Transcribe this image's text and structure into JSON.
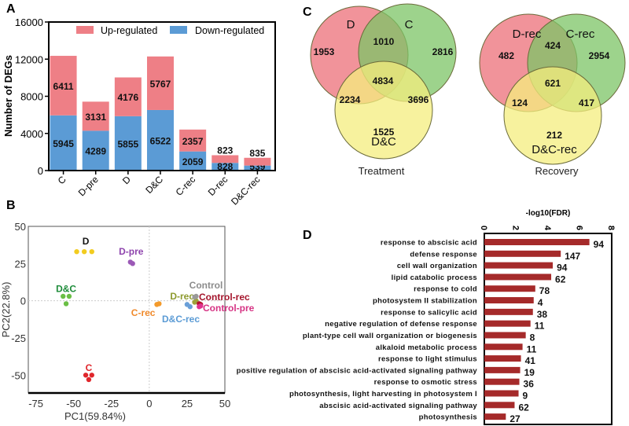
{
  "panels": {
    "a": "A",
    "b": "B",
    "c": "C",
    "d": "D"
  },
  "chart_data": [
    {
      "type": "bar",
      "stacked": true,
      "ylabel": "Number of DEGs",
      "ylim": [
        0,
        16000
      ],
      "yticks": [
        0,
        4000,
        8000,
        12000,
        16000
      ],
      "categories": [
        "C",
        "D-pre",
        "D",
        "D&C",
        "C-rec",
        "D-rec",
        "D&C-rec"
      ],
      "legend_position": "top-right",
      "series": [
        {
          "name": "Down-regulated",
          "color": "#5b9bd5",
          "values": [
            5945,
            4289,
            5855,
            6522,
            2059,
            828,
            539
          ]
        },
        {
          "name": "Up-regulated",
          "color": "#ee7f86",
          "values": [
            6411,
            3131,
            4176,
            5767,
            2357,
            823,
            835
          ]
        }
      ]
    },
    {
      "type": "scatter",
      "xlabel": "PC1(59.84%)",
      "ylabel": "PC2(22.8%)",
      "xlim": [
        -80,
        50
      ],
      "ylim": [
        -62,
        50
      ],
      "xticks": [
        -75,
        -50,
        -25,
        0,
        25,
        50
      ],
      "yticks": [
        -50,
        -25,
        0,
        25,
        50
      ],
      "groups": [
        {
          "name": "D",
          "color": "#f2cc1f",
          "label_color": "#111111",
          "points": [
            [
              -48,
              33
            ],
            [
              -43,
              33
            ],
            [
              -38,
              33
            ]
          ],
          "label_at": [
            -42,
            40
          ]
        },
        {
          "name": "D-pre",
          "color": "#9b59b6",
          "label_color": "#8e44ad",
          "points": [
            [
              -12.5,
              26
            ],
            [
              -11,
              25
            ]
          ],
          "label_at": [
            -12,
            33
          ]
        },
        {
          "name": "D&C",
          "color": "#6abf45",
          "label_color": "#1e8c3a",
          "points": [
            [
              -57,
              3
            ],
            [
              -53,
              3
            ],
            [
              -55,
              -2
            ]
          ],
          "label_at": [
            -55,
            8
          ]
        },
        {
          "name": "C",
          "color": "#e0262b",
          "label_color": "#e0262b",
          "points": [
            [
              -42,
              -50
            ],
            [
              -38,
              -50
            ],
            [
              -40,
              -53
            ]
          ],
          "label_at": [
            -40,
            -45
          ]
        },
        {
          "name": "C-rec",
          "color": "#f39a2b",
          "label_color": "#f08a2b",
          "points": [
            [
              5,
              -2.5
            ],
            [
              6.5,
              -2
            ]
          ],
          "label_at": [
            -4,
            -8
          ]
        },
        {
          "name": "D-rec",
          "color": "#9ea23a",
          "label_color": "#8d9a2e",
          "points": [
            [
              30,
              -1
            ],
            [
              31,
              0
            ]
          ],
          "label_at": [
            18,
            2
          ]
        },
        {
          "name": "Control",
          "color": "#999999",
          "label_color": "#8c8c8c",
          "points": [
            [
              30,
              2.5
            ],
            [
              31,
              3
            ]
          ],
          "label_at": [
            31,
            9
          ]
        },
        {
          "name": "Control-rec",
          "color": "#b3122b",
          "label_color": "#a4142b",
          "points": [
            [
              33,
              -2
            ],
            [
              34,
              -2.5
            ]
          ],
          "label_at": [
            46,
            2
          ]
        },
        {
          "name": "Control-pre",
          "color": "#e0338f",
          "label_color": "#d63384",
          "points": [
            [
              33,
              -4
            ],
            [
              34,
              -3.5
            ]
          ],
          "label_at": [
            51,
            -4
          ]
        },
        {
          "name": "D&C-rec",
          "color": "#6a9fd8",
          "label_color": "#5b9bd5",
          "points": [
            [
              25,
              -2.5
            ],
            [
              27,
              -4
            ]
          ],
          "label_at": [
            24,
            -9
          ]
        }
      ]
    },
    {
      "type": "venn",
      "title": "Treatment",
      "sets": [
        "D",
        "C",
        "D&C"
      ],
      "regions": {
        "only_a": 1953,
        "only_b": 2816,
        "only_c": 1525,
        "ab": 1010,
        "ac": 2234,
        "bc": 3696,
        "abc": 4834
      }
    },
    {
      "type": "venn",
      "title": "Recovery",
      "sets": [
        "D-rec",
        "C-rec",
        "D&C-rec"
      ],
      "regions": {
        "only_a": 482,
        "only_b": 2954,
        "only_c": 212,
        "ab": 424,
        "ac": 124,
        "bc": 417,
        "abc": 621
      }
    },
    {
      "type": "bar",
      "orientation": "horizontal",
      "xlabel": "-log10(FDR)",
      "xlim": [
        0,
        8
      ],
      "xticks": [
        0,
        2,
        4,
        6,
        8
      ],
      "color": "#a52a2a",
      "categories": [
        "response to abscisic acid",
        "defense response",
        "cell wall organization",
        "lipid catabolic process",
        "response to cold",
        "photosystem II stabilization",
        "response to salicylic acid",
        "negative regulation of defense response",
        "plant-type cell wall organization or biogenesis",
        "alkaloid metabolic process",
        "response to light stimulus",
        "positive regulation of abscisic acid-activated signaling pathway",
        "response to osmotic stress",
        "photosynthesis, light harvesting in photosystem I",
        "abscisic acid-activated signaling pathway",
        "photosynthesis"
      ],
      "values": [
        6.6,
        4.8,
        4.3,
        4.2,
        3.2,
        3.1,
        3.05,
        2.9,
        2.6,
        2.4,
        2.3,
        2.25,
        2.2,
        2.15,
        1.9,
        1.35
      ],
      "data_labels": [
        "94",
        "147",
        "94",
        "62",
        "78",
        "4",
        "38",
        "11",
        "8",
        "11",
        "41",
        "19",
        "36",
        "9",
        "62",
        "27"
      ]
    }
  ]
}
